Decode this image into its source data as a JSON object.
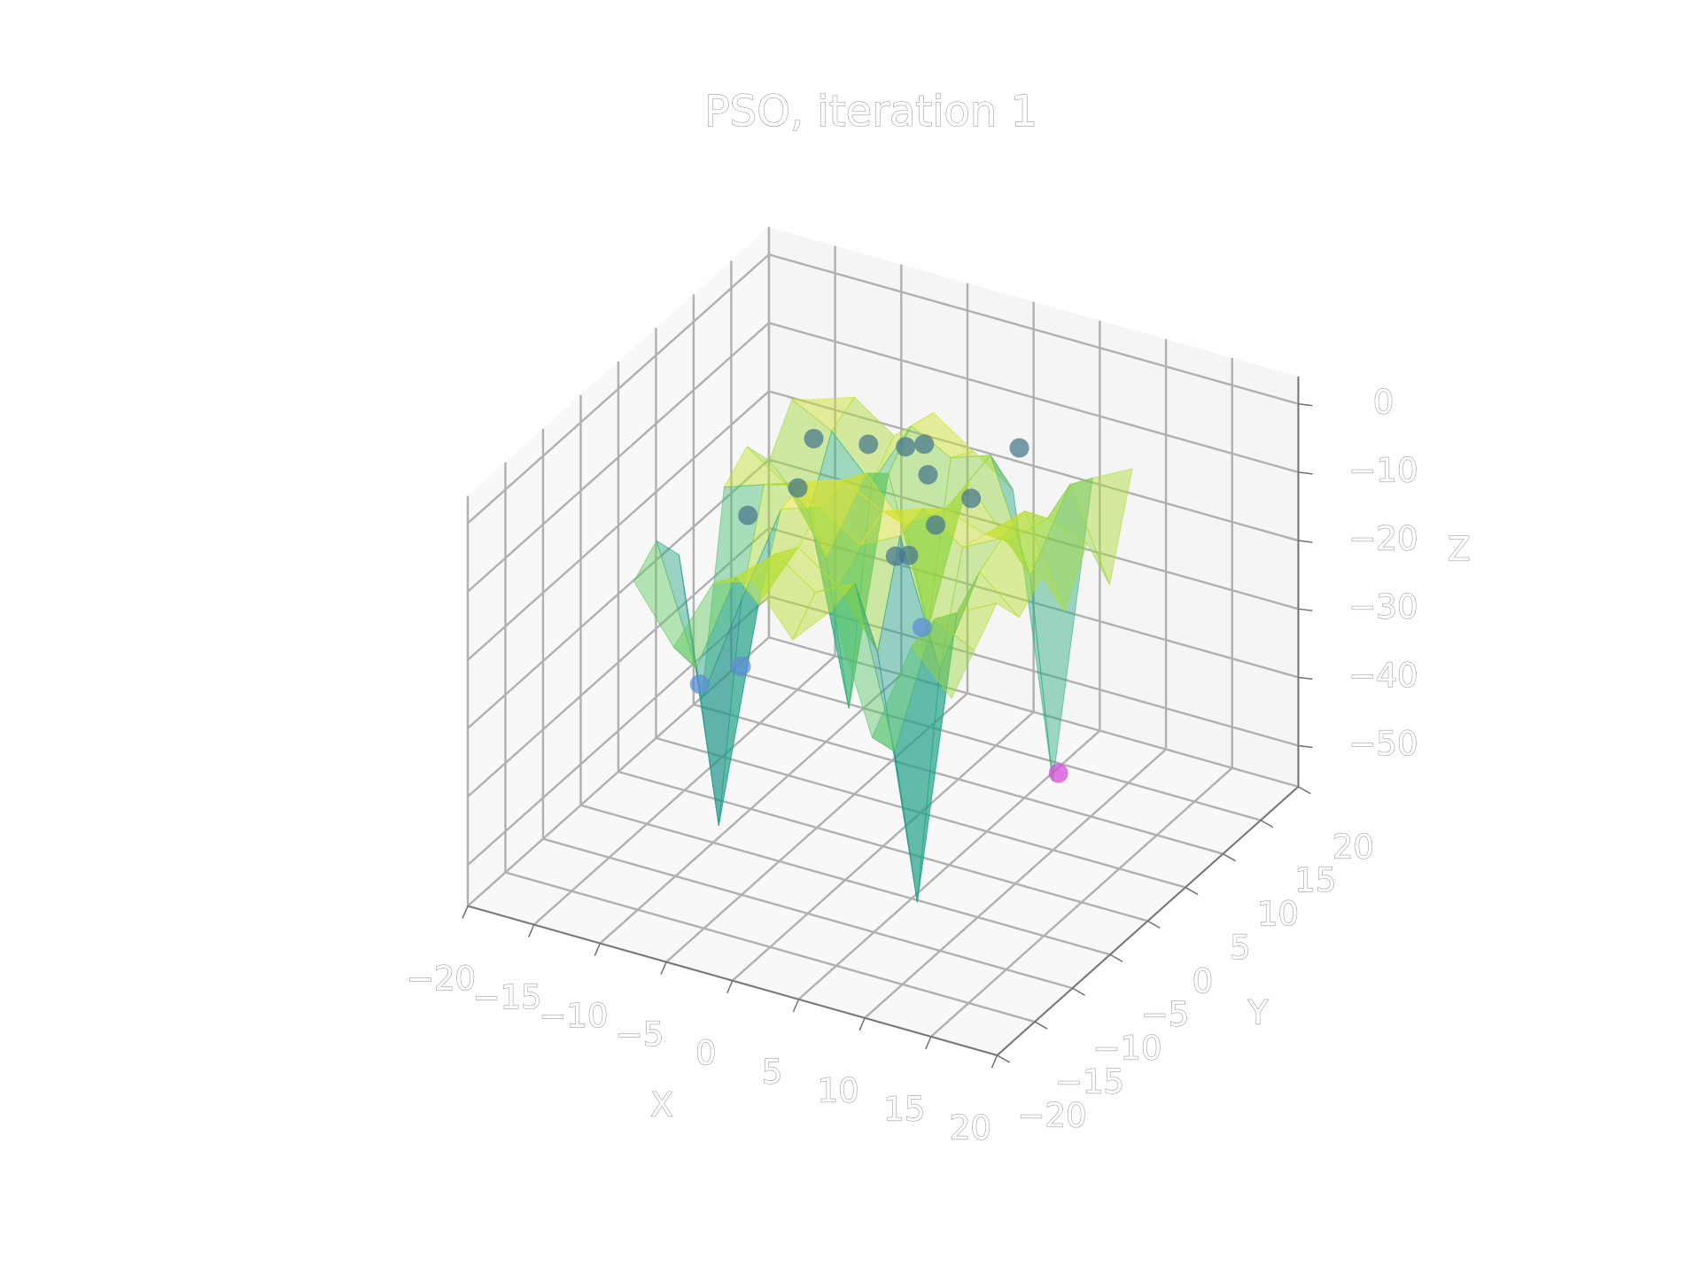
{
  "chart_data": {
    "type": "surface3d",
    "title": "PSO, iteration 1",
    "xlabel": "X",
    "ylabel": "Y",
    "zlabel": "Z",
    "xlim": [
      -20,
      20
    ],
    "ylim": [
      -20,
      20
    ],
    "zlim": [
      -56,
      4
    ],
    "xticks": [
      {
        "value": -20,
        "label": "−20"
      },
      {
        "value": -15,
        "label": "−15"
      },
      {
        "value": -10,
        "label": "−10"
      },
      {
        "value": -5,
        "label": "−5"
      },
      0,
      5,
      10,
      15,
      20
    ],
    "yticks": [
      {
        "value": -20,
        "label": "−20"
      },
      {
        "value": -15,
        "label": "−15"
      },
      {
        "value": -10,
        "label": "−10"
      },
      {
        "value": -5,
        "label": "−5"
      },
      0,
      5,
      10,
      15,
      20
    ],
    "zticks": [
      {
        "value": -50,
        "label": "−50"
      },
      {
        "value": -40,
        "label": "−40"
      },
      {
        "value": -30,
        "label": "−30"
      },
      {
        "value": -20,
        "label": "−20"
      },
      {
        "value": -10,
        "label": "−10"
      },
      0
    ],
    "grid": true,
    "colormap": "viridis",
    "surface": {
      "x": [
        -12,
        -9,
        -6,
        -3,
        0,
        3,
        6,
        9,
        12
      ],
      "y": [
        -12,
        -9,
        -6,
        -3,
        0,
        3,
        6,
        9,
        12
      ],
      "z": [
        [
          -12,
          -20,
          -9,
          -7,
          -14,
          -8,
          -25,
          -10,
          -16
        ],
        [
          -9,
          -26,
          -11,
          -6,
          -10,
          -7,
          -30,
          -9,
          -12
        ],
        [
          -14,
          -52,
          -18,
          -8,
          -12,
          -20,
          -55,
          -11,
          -8
        ],
        [
          -38,
          -22,
          -7,
          -5,
          -9,
          -6,
          -24,
          -8,
          -13
        ],
        [
          -10,
          -8,
          -6,
          -4,
          -7,
          -5,
          -9,
          -6,
          -10
        ],
        [
          -7,
          -11,
          -20,
          -6,
          -12,
          -8,
          -10,
          -5,
          -18
        ],
        [
          -12,
          -18,
          -45,
          -9,
          -30,
          -7,
          -14,
          -9,
          -11
        ],
        [
          -6,
          -9,
          -15,
          -5,
          -8,
          -6,
          -22,
          -7,
          -20
        ],
        [
          -9,
          -7,
          -11,
          -6,
          -10,
          -14,
          -55,
          -9,
          -6
        ]
      ],
      "opacity": 0.45
    },
    "particles": {
      "x": [
        -9.1,
        -5.6,
        -3.3,
        -2.4,
        3.3,
        -1.1,
        2.9,
        1.7,
        2.1,
        1.4,
        -8.6,
        -9.7,
        -0.4,
        -10.5,
        -12.6,
        5.8
      ],
      "y": [
        6.8,
        7.9,
        8.8,
        9.7,
        12.3,
        7.9,
        6.6,
        4.0,
        -0.3,
        -0.8,
        3.8,
        -0.9,
        5.9,
        -0.4,
        -2.2,
        13.1
      ],
      "z": [
        -8,
        -8,
        -8,
        -8,
        -8,
        -10,
        -10,
        -12,
        -12,
        -12,
        -12,
        -12,
        -30,
        -35,
        -37,
        -55
      ],
      "colors": [
        "#4a7a8c",
        "#4a7a8c",
        "#4a7a8c",
        "#4a7a8c",
        "#4a7a8c",
        "#4a7a8c",
        "#4a7a8c",
        "#4a7a8c",
        "#4a7a8c",
        "#4a7a8c",
        "#4a7a8c",
        "#4a7a8c",
        "#5b8fd6",
        "#5b8fd6",
        "#5b8fd6",
        "#d44fd4"
      ]
    }
  }
}
